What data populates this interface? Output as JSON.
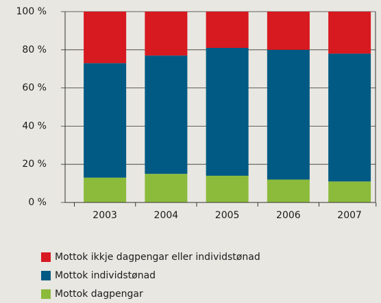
{
  "chart_data": {
    "type": "stacked_bar",
    "categories": [
      "2003",
      "2004",
      "2005",
      "2006",
      "2007"
    ],
    "series": [
      {
        "name": "Mottok ikkje dagpengar eller individstønad",
        "color": "#d71920",
        "values": [
          27,
          23,
          19,
          20,
          22
        ]
      },
      {
        "name": "Mottok individstønad",
        "color": "#005a84",
        "values": [
          60,
          62,
          67,
          68,
          67
        ]
      },
      {
        "name": "Mottok dagpengar",
        "color": "#8cbb3c",
        "values": [
          13,
          15,
          14,
          12,
          11
        ]
      }
    ],
    "ylim": [
      0,
      100
    ],
    "yticks": [
      {
        "value": 0,
        "label": "0 %"
      },
      {
        "value": 20,
        "label": "20 %"
      },
      {
        "value": 40,
        "label": "40 %"
      },
      {
        "value": 60,
        "label": "60 %"
      },
      {
        "value": 80,
        "label": "80 %"
      },
      {
        "value": 100,
        "label": "100 %"
      }
    ],
    "grid": true
  }
}
